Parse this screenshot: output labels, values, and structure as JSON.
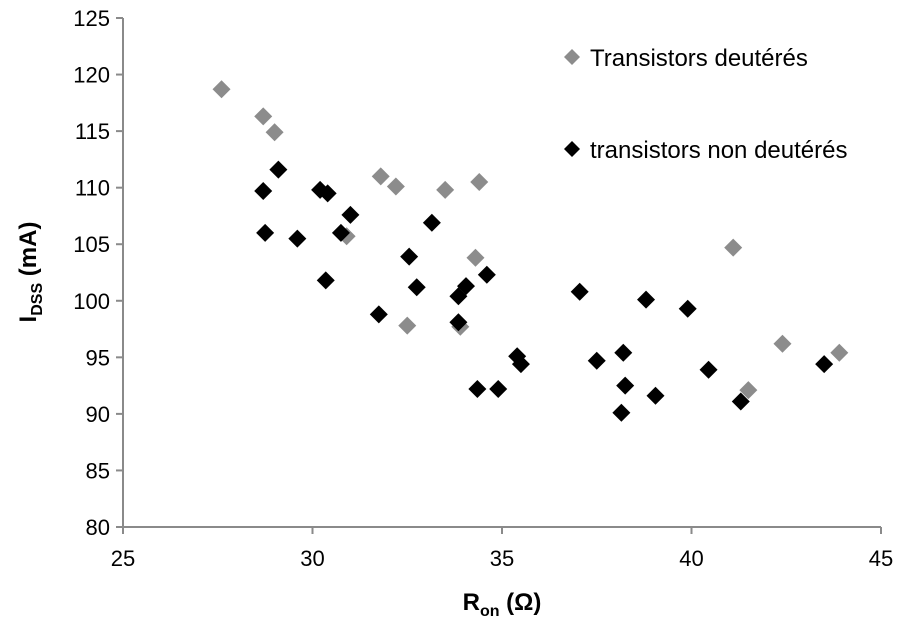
{
  "chart_data": {
    "type": "scatter",
    "title": "",
    "xlabel": {
      "main": "R",
      "sub": "on",
      "unit": " (Ω)"
    },
    "ylabel": {
      "main": "I",
      "sub": "DSS",
      "unit": " (mA)"
    },
    "xlim": [
      25,
      45
    ],
    "ylim": [
      80,
      125
    ],
    "xticks": [
      25,
      30,
      35,
      40,
      45
    ],
    "yticks": [
      80,
      85,
      90,
      95,
      100,
      105,
      110,
      115,
      120,
      125
    ],
    "grid": false,
    "legend_position": "top-right",
    "series": [
      {
        "name": "Transistors deutérés",
        "color": "#8c8c8c",
        "marker": "diamond",
        "points": [
          [
            27.6,
            118.7
          ],
          [
            28.7,
            116.3
          ],
          [
            29.0,
            114.9
          ],
          [
            31.8,
            111.0
          ],
          [
            32.2,
            110.1
          ],
          [
            33.5,
            109.8
          ],
          [
            34.4,
            110.5
          ],
          [
            30.9,
            105.7
          ],
          [
            34.3,
            103.8
          ],
          [
            32.5,
            97.8
          ],
          [
            33.9,
            97.7
          ],
          [
            41.1,
            104.7
          ],
          [
            42.4,
            96.2
          ],
          [
            43.9,
            95.4
          ],
          [
            41.5,
            92.1
          ]
        ]
      },
      {
        "name": "transistors non deutérés",
        "color": "#000000",
        "marker": "diamond",
        "points": [
          [
            28.7,
            109.7
          ],
          [
            29.1,
            111.6
          ],
          [
            30.2,
            109.8
          ],
          [
            30.4,
            109.5
          ],
          [
            31.0,
            107.6
          ],
          [
            28.75,
            106.0
          ],
          [
            29.6,
            105.5
          ],
          [
            30.75,
            106.0
          ],
          [
            33.15,
            106.9
          ],
          [
            32.55,
            103.9
          ],
          [
            30.35,
            101.8
          ],
          [
            32.75,
            101.2
          ],
          [
            31.75,
            98.8
          ],
          [
            33.85,
            100.4
          ],
          [
            34.05,
            101.3
          ],
          [
            34.6,
            102.3
          ],
          [
            33.85,
            98.1
          ],
          [
            35.4,
            95.1
          ],
          [
            35.5,
            94.4
          ],
          [
            34.35,
            92.2
          ],
          [
            34.9,
            92.2
          ],
          [
            37.05,
            100.8
          ],
          [
            37.5,
            94.7
          ],
          [
            38.2,
            95.4
          ],
          [
            38.25,
            92.5
          ],
          [
            38.15,
            90.1
          ],
          [
            38.8,
            100.1
          ],
          [
            39.05,
            91.6
          ],
          [
            39.9,
            99.3
          ],
          [
            40.45,
            93.9
          ],
          [
            41.3,
            91.1
          ],
          [
            43.5,
            94.4
          ]
        ]
      }
    ]
  }
}
